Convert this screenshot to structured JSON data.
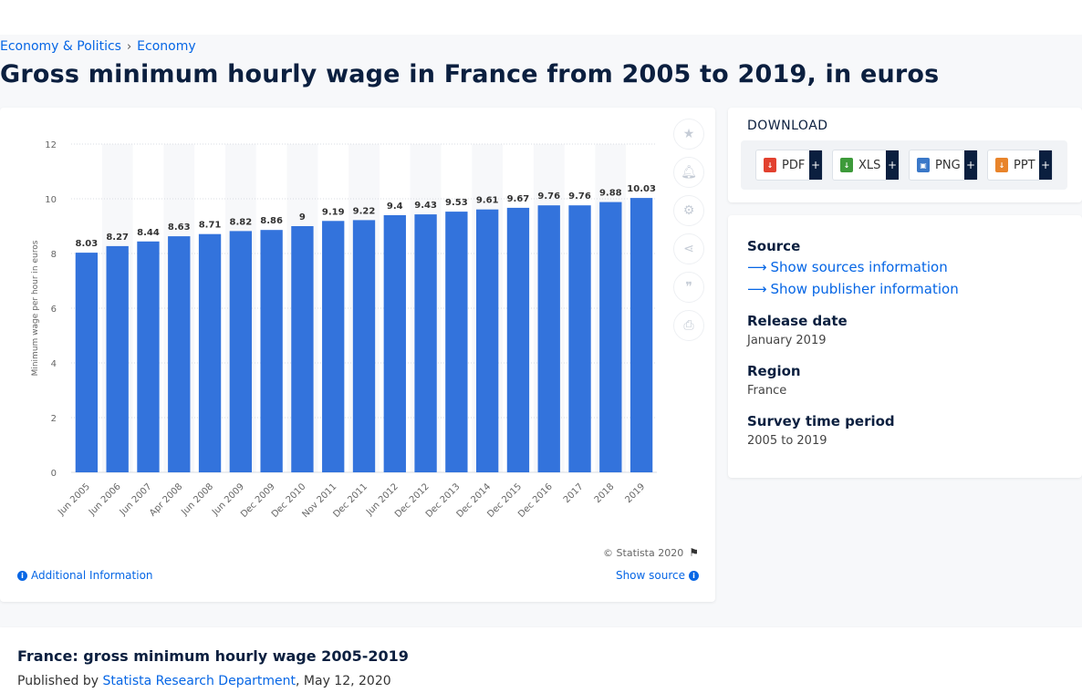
{
  "breadcrumb": {
    "item1": "Economy & Politics",
    "sep": "›",
    "item2": "Economy"
  },
  "page_title": "Gross minimum hourly wage in France from 2005 to 2019, in euros",
  "chart_data": {
    "type": "bar",
    "categories": [
      "Jun 2005",
      "Jun 2006",
      "Jun 2007",
      "Apr 2008",
      "Jun 2008",
      "Jun 2009",
      "Dec 2009",
      "Dec 2010",
      "Nov 2011",
      "Dec 2011",
      "Jun 2012",
      "Dec 2012",
      "Dec 2013",
      "Dec 2014",
      "Dec 2015",
      "Dec 2016",
      "2017",
      "2018",
      "2019"
    ],
    "values": [
      8.03,
      8.27,
      8.44,
      8.63,
      8.71,
      8.82,
      8.86,
      9,
      9.19,
      9.22,
      9.4,
      9.43,
      9.53,
      9.61,
      9.67,
      9.76,
      9.76,
      9.88,
      10.03
    ],
    "value_labels": [
      "8.03",
      "8.27",
      "8.44",
      "8.63",
      "8.71",
      "8.82",
      "8.86",
      "9",
      "9.19",
      "9.22",
      "9.4",
      "9.43",
      "9.53",
      "9.61",
      "9.67",
      "9.76",
      "9.76",
      "9.88",
      "10.03"
    ],
    "ylabel": "Minimum wage per hour in euros",
    "ylim": [
      0,
      12
    ],
    "yticks": [
      0,
      2,
      4,
      6,
      8,
      10,
      12
    ],
    "grid": true,
    "bar_color": "#3373dc"
  },
  "chart_footer": {
    "copyright": "© Statista 2020",
    "additional_info": "Additional Information",
    "show_source": "Show source"
  },
  "toolbar_icons": [
    "star-icon",
    "bell-icon",
    "gear-icon",
    "share-icon",
    "quote-icon",
    "print-icon"
  ],
  "download": {
    "title": "DOWNLOAD",
    "buttons": [
      {
        "label": "PDF",
        "plus": "+",
        "color": "#e2412f"
      },
      {
        "label": "XLS",
        "plus": "+",
        "color": "#3d9a3a"
      },
      {
        "label": "PNG",
        "plus": "+",
        "color": "#3a78c8"
      },
      {
        "label": "PPT",
        "plus": "+",
        "color": "#e8842b"
      }
    ]
  },
  "info": {
    "source_heading": "Source",
    "show_sources": "Show sources information",
    "show_publisher": "Show publisher information",
    "release_heading": "Release date",
    "release_value": "January 2019",
    "region_heading": "Region",
    "region_value": "France",
    "survey_heading": "Survey time period",
    "survey_value": "2005 to 2019"
  },
  "publication": {
    "title": "France: gross minimum hourly wage 2005-2019",
    "published_by": "Published by",
    "publisher": "Statista Research Department",
    "date": ", May 12, 2020"
  },
  "colors": {
    "accent": "#0666e5",
    "navy": "#0b1f3f",
    "bar": "#3373dc"
  }
}
